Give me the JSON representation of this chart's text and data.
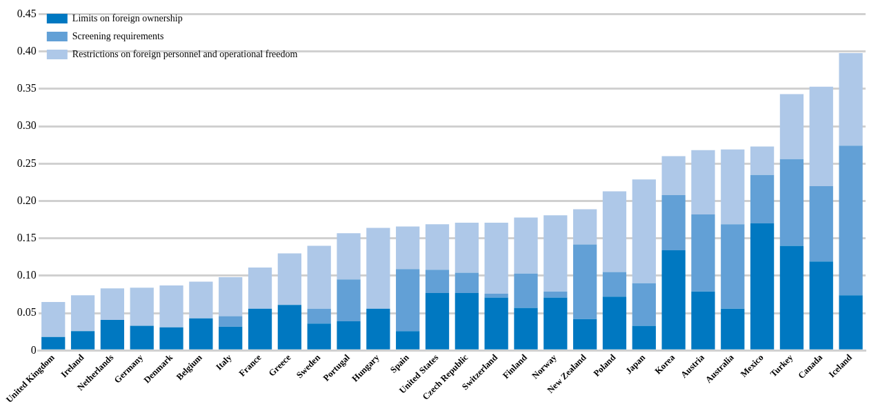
{
  "chart_data": {
    "type": "bar",
    "stacked": true,
    "categories": [
      "United Kingdom",
      "Ireland",
      "Netherlands",
      "Germany",
      "Denmark",
      "Belgium",
      "Italy",
      "France",
      "Greece",
      "Sweden",
      "Portugal",
      "Hungary",
      "Spain",
      "United States",
      "Czech Republic",
      "Switzerland",
      "Finland",
      "Norway",
      "New Zealand",
      "Poland",
      "Japan",
      "Korea",
      "Austria",
      "Australia",
      "Mexico",
      "Turkey",
      "Canada",
      "Iceland"
    ],
    "series": [
      {
        "name": "Limits on foreign ownership",
        "color": "#0078c1",
        "values": [
          0.018,
          0.026,
          0.041,
          0.033,
          0.031,
          0.043,
          0.032,
          0.056,
          0.061,
          0.036,
          0.039,
          0.056,
          0.026,
          0.077,
          0.077,
          0.071,
          0.057,
          0.071,
          0.042,
          0.072,
          0.033,
          0.134,
          0.079,
          0.056,
          0.17,
          0.14,
          0.119,
          0.074
        ]
      },
      {
        "name": "Screening requirements",
        "color": "#62a0d6",
        "values": [
          0,
          0,
          0,
          0,
          0,
          0,
          0.014,
          0,
          0,
          0.02,
          0.056,
          0,
          0.083,
          0.031,
          0.027,
          0.005,
          0.046,
          0.008,
          0.1,
          0.033,
          0.057,
          0.074,
          0.103,
          0.113,
          0.065,
          0.116,
          0.101,
          0.2
        ]
      },
      {
        "name": "Restrictions on foreign personnel and operational freedom",
        "color": "#aec8e8",
        "values": [
          0.047,
          0.048,
          0.042,
          0.051,
          0.056,
          0.049,
          0.052,
          0.055,
          0.069,
          0.084,
          0.062,
          0.108,
          0.057,
          0.061,
          0.067,
          0.095,
          0.075,
          0.102,
          0.047,
          0.108,
          0.139,
          0.052,
          0.086,
          0.1,
          0.038,
          0.087,
          0.133,
          0.124
        ]
      }
    ],
    "ylim": [
      0,
      0.45
    ],
    "yticks": [
      0,
      0.05,
      {
        "value": 0.1,
        "label": "0.10"
      },
      0.15,
      {
        "value": 0.2,
        "label": "0.20"
      },
      0.25,
      {
        "value": 0.3,
        "label": "0.30"
      },
      0.35,
      {
        "value": 0.4,
        "label": "0.40"
      },
      0.45
    ],
    "grid": "y",
    "legend": "top left"
  }
}
